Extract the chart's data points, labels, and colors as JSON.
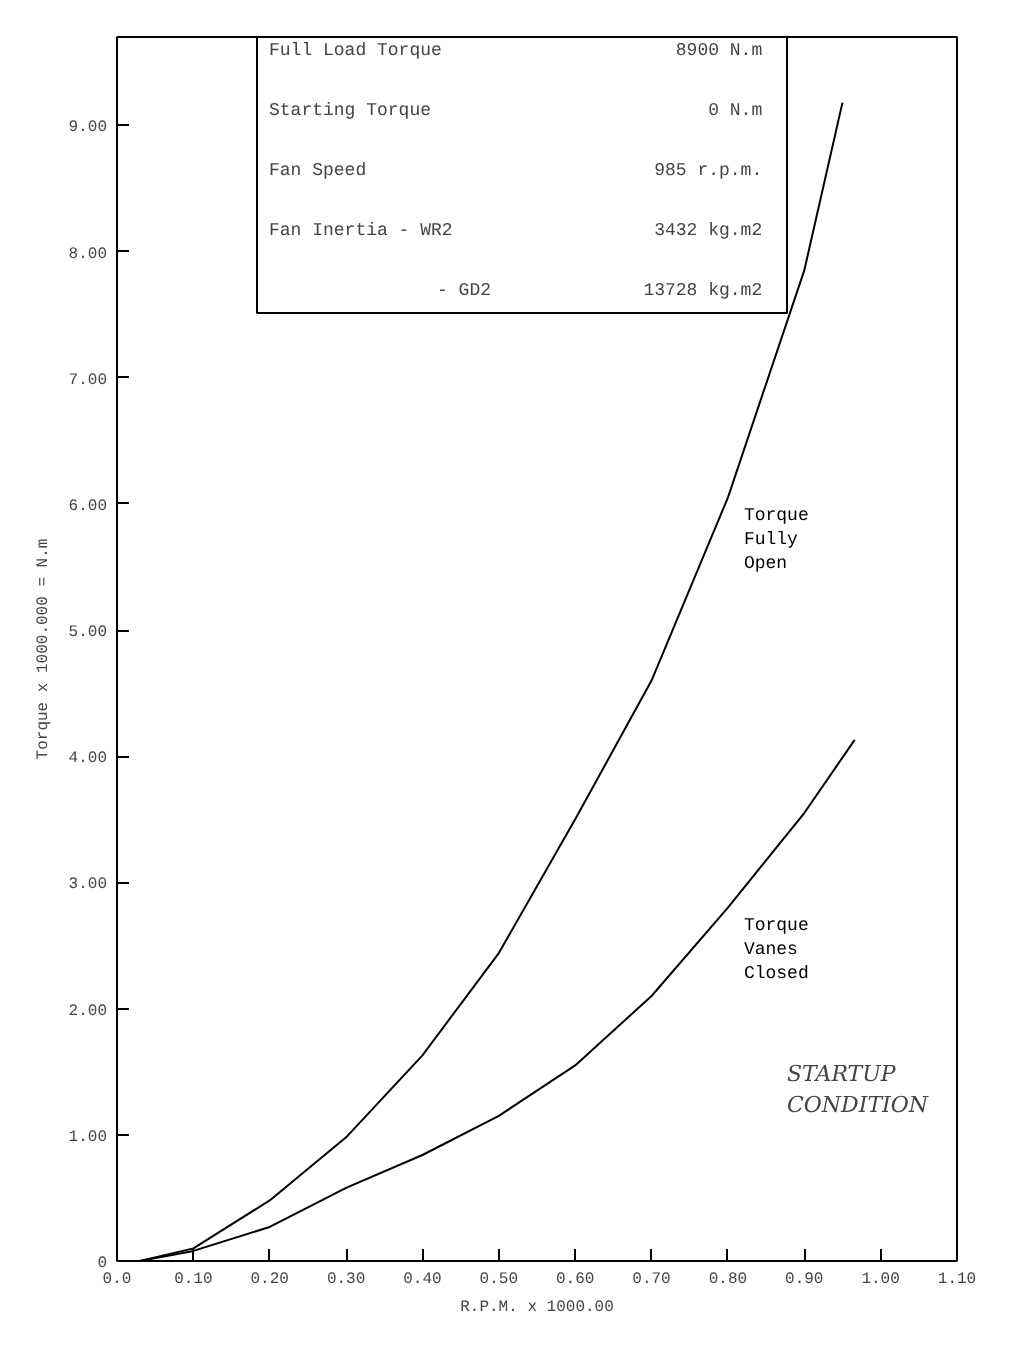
{
  "chart_data": {
    "type": "line",
    "xlabel": "R.P.M. x 1000.00",
    "ylabel": "Torque x 1000.000 = N.m",
    "xlim": [
      0,
      1.1
    ],
    "ylim": [
      0,
      9.7
    ],
    "xticks": [
      {
        "value": 0,
        "label": "0.0"
      },
      {
        "value": 0.1,
        "label": "0.10"
      },
      {
        "value": 0.2,
        "label": "0.20"
      },
      {
        "value": 0.3,
        "label": "0.30"
      },
      {
        "value": 0.4,
        "label": "0.40"
      },
      {
        "value": 0.5,
        "label": "0.50"
      },
      {
        "value": 0.6,
        "label": "0.60"
      },
      {
        "value": 0.7,
        "label": "0.70"
      },
      {
        "value": 0.8,
        "label": "0.80"
      },
      {
        "value": 0.9,
        "label": "0.90"
      },
      {
        "value": 1.0,
        "label": "1.00"
      },
      {
        "value": 1.1,
        "label": "1.10"
      }
    ],
    "yticks": [
      0,
      {
        "value": 1,
        "label": "1.00"
      },
      {
        "value": 2,
        "label": "2.00"
      },
      {
        "value": 3,
        "label": "3.00"
      },
      {
        "value": 4,
        "label": "4.00"
      },
      {
        "value": 5,
        "label": "5.00"
      },
      {
        "value": 6,
        "label": "6.00"
      },
      {
        "value": 7,
        "label": "7.00"
      },
      {
        "value": 8,
        "label": "8.00"
      },
      {
        "value": 9,
        "label": "9.00"
      }
    ],
    "grid": false,
    "legend": false,
    "marker": "none",
    "line_style": "solid",
    "series": [
      {
        "name": "Torque\nFully\nOpen",
        "color": "#000000",
        "x": [
          0.03,
          0.1,
          0.2,
          0.3,
          0.4,
          0.5,
          0.6,
          0.7,
          0.8,
          0.9,
          0.95
        ],
        "values": [
          0,
          0.1,
          0.48,
          0.98,
          1.63,
          2.44,
          3.5,
          4.6,
          6.05,
          7.85,
          9.18
        ]
      },
      {
        "name": "Torque\nVanes\nClosed",
        "color": "#000000",
        "x": [
          0.03,
          0.1,
          0.2,
          0.3,
          0.4,
          0.5,
          0.6,
          0.7,
          0.8,
          0.9,
          0.966
        ],
        "values": [
          0,
          0.08,
          0.27,
          0.58,
          0.84,
          1.15,
          1.55,
          2.1,
          2.8,
          3.55,
          4.13
        ]
      }
    ],
    "annotations": [
      "Full Load Torque",
      "8900  N.m",
      "Starting Torque",
      "0  N.m",
      "Fan Speed",
      "985  r.p.m.",
      "Fan Inertia - WR2",
      "3432  kg.m2",
      "- GD2",
      "13728  kg.m2",
      "STARTUP\nCONDITION"
    ]
  }
}
